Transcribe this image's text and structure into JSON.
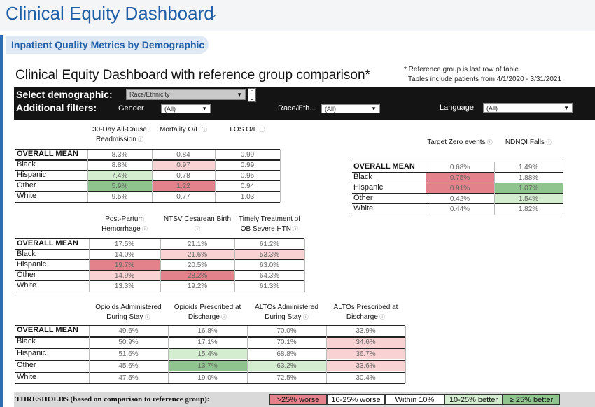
{
  "header": {
    "title": "Clinical Equity Dashboard"
  },
  "pill_label": "Inpatient Quality Metrics by Demographic",
  "heading": "Clinical Equity Dashboard with reference group comparison*",
  "note": [
    "* Reference group is last row of table.",
    "Tables include patients from 4/1/2020 - 3/31/2021"
  ],
  "filters": {
    "select_label": "Select demographic:",
    "additional_label": "Additional filters:",
    "demographic_value": "Race/Ethnicity",
    "gender_label": "Gender",
    "gender_value": "(All)",
    "race_label": "Race/Eth...",
    "race_value": "(All)",
    "language_label": "Language",
    "language_value": "(All)"
  },
  "rows": [
    "OVERALL MEAN",
    "Black",
    "Hispanic",
    "Other",
    "White"
  ],
  "colors": {
    "worse25": "#e3828b",
    "worse10": "#f9d3d3",
    "better10": "#d4ecd0",
    "better25": "#8fc48f"
  },
  "table1": {
    "headers": [
      "30-Day All-Cause Readmission",
      "Mortality O/E",
      "LOS O/E"
    ],
    "values": [
      [
        "8.3%",
        "0.84",
        "0.99"
      ],
      [
        "8.8%",
        "0.97",
        "0.99"
      ],
      [
        "7.4%",
        "0.78",
        "0.95"
      ],
      [
        "5.9%",
        "1.22",
        "0.94"
      ],
      [
        "9.5%",
        "0.77",
        "1.03"
      ]
    ],
    "shade": [
      [
        "",
        "",
        ""
      ],
      [
        "",
        "worse10",
        ""
      ],
      [
        "better10",
        "",
        ""
      ],
      [
        "better25",
        "worse25",
        ""
      ],
      [
        "",
        "",
        ""
      ]
    ]
  },
  "table2": {
    "headers": [
      "Target Zero events",
      "NDNQI Falls"
    ],
    "values": [
      [
        "0.68%",
        "1.49%"
      ],
      [
        "0.75%",
        "1.88%"
      ],
      [
        "0.91%",
        "1.07%"
      ],
      [
        "0.42%",
        "1.54%"
      ],
      [
        "0.44%",
        "1.82%"
      ]
    ],
    "shade": [
      [
        "",
        ""
      ],
      [
        "worse25",
        ""
      ],
      [
        "worse25",
        "better25"
      ],
      [
        "",
        "better10"
      ],
      [
        "",
        ""
      ]
    ]
  },
  "table3": {
    "headers": [
      "Post-Partum Hemorrhage",
      "NTSV Cesarean Birth",
      "Timely Treatment of OB Severe HTN"
    ],
    "values": [
      [
        "17.5%",
        "21.1%",
        "61.2%"
      ],
      [
        "14.0%",
        "21.6%",
        "53.3%"
      ],
      [
        "19.7%",
        "20.5%",
        "63.0%"
      ],
      [
        "14.9%",
        "28.2%",
        "64.3%"
      ],
      [
        "13.3%",
        "19.2%",
        "61.3%"
      ]
    ],
    "shade": [
      [
        "",
        "",
        ""
      ],
      [
        "",
        "worse10",
        "worse10"
      ],
      [
        "worse25",
        "",
        ""
      ],
      [
        "worse10",
        "worse25",
        ""
      ],
      [
        "",
        "",
        ""
      ]
    ]
  },
  "table4": {
    "headers": [
      "Opioids Administered During Stay",
      "Opioids Prescribed at Discharge",
      "ALTOs Administered During Stay",
      "ALTOs Prescribed at Discharge"
    ],
    "values": [
      [
        "49.6%",
        "16.8%",
        "70.0%",
        "33.9%"
      ],
      [
        "50.9%",
        "17.1%",
        "70.1%",
        "34.6%"
      ],
      [
        "51.6%",
        "15.4%",
        "68.8%",
        "36.7%"
      ],
      [
        "45.6%",
        "13.7%",
        "63.2%",
        "33.6%"
      ],
      [
        "47.5%",
        "19.0%",
        "72.5%",
        "30.4%"
      ]
    ],
    "shade": [
      [
        "",
        "",
        "",
        ""
      ],
      [
        "",
        "",
        "",
        "worse10"
      ],
      [
        "",
        "better10",
        "",
        "worse10"
      ],
      [
        "",
        "better25",
        "better10",
        "worse10"
      ],
      [
        "",
        "",
        "",
        ""
      ]
    ]
  },
  "thresholds": {
    "title": "THRESHOLDS (based on comparison to reference group):",
    "items": [
      ">25% worse",
      "10-25% worse",
      "Within 10%",
      "10-25% better",
      "≥ 25% better"
    ]
  }
}
